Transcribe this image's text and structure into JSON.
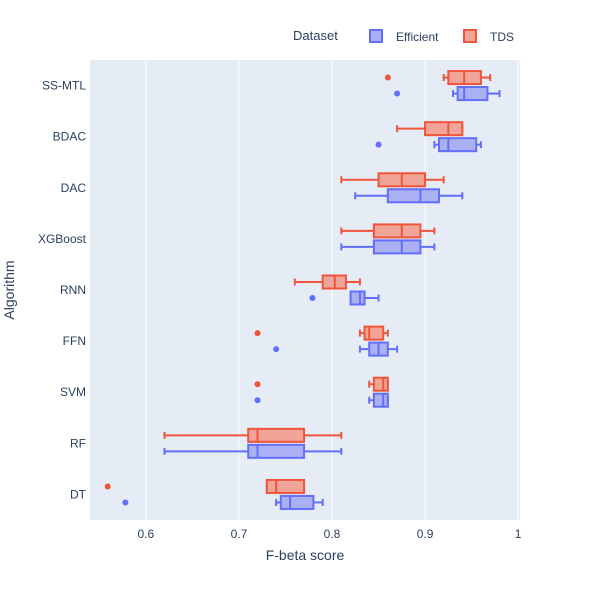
{
  "chart_data": {
    "type": "box",
    "orientation": "horizontal",
    "title": "",
    "xlabel": "F-beta score",
    "ylabel": "Algorithm",
    "xlim": [
      0.54,
      1.002
    ],
    "xticks": [
      0.6,
      0.7,
      0.8,
      0.9,
      1
    ],
    "xtick_labels": [
      "0.6",
      "0.7",
      "0.8",
      "0.9",
      "1"
    ],
    "categories": [
      "DT",
      "RF",
      "SVM",
      "FFN",
      "RNN",
      "XGBoost",
      "DAC",
      "BDAC",
      "SS-MTL"
    ],
    "legend": {
      "title": "Dataset",
      "position": "top-right",
      "items": [
        {
          "name": "Efficient",
          "color": "#636efa"
        },
        {
          "name": "TDS",
          "color": "#ef553b"
        }
      ]
    },
    "grid": true,
    "background_color": "#e5ecf6",
    "series": [
      {
        "name": "Efficient",
        "color": "#636efa",
        "fill": "#aab0f2",
        "boxes": [
          {
            "category": "DT",
            "whisker_low": 0.74,
            "q1": 0.745,
            "median": 0.755,
            "q3": 0.78,
            "whisker_high": 0.79,
            "outliers": [
              0.578
            ]
          },
          {
            "category": "RF",
            "whisker_low": 0.62,
            "q1": 0.71,
            "median": 0.72,
            "q3": 0.77,
            "whisker_high": 0.81,
            "outliers": []
          },
          {
            "category": "SVM",
            "whisker_low": 0.84,
            "q1": 0.845,
            "median": 0.855,
            "q3": 0.86,
            "whisker_high": 0.86,
            "outliers": [
              0.72
            ]
          },
          {
            "category": "FFN",
            "whisker_low": 0.83,
            "q1": 0.84,
            "median": 0.85,
            "q3": 0.86,
            "whisker_high": 0.87,
            "outliers": [
              0.74
            ]
          },
          {
            "category": "RNN",
            "whisker_low": 0.82,
            "q1": 0.82,
            "median": 0.83,
            "q3": 0.835,
            "whisker_high": 0.85,
            "outliers": [
              0.779
            ]
          },
          {
            "category": "XGBoost",
            "whisker_low": 0.81,
            "q1": 0.845,
            "median": 0.875,
            "q3": 0.895,
            "whisker_high": 0.91,
            "outliers": []
          },
          {
            "category": "DAC",
            "whisker_low": 0.825,
            "q1": 0.86,
            "median": 0.895,
            "q3": 0.915,
            "whisker_high": 0.94,
            "outliers": []
          },
          {
            "category": "BDAC",
            "whisker_low": 0.91,
            "q1": 0.915,
            "median": 0.925,
            "q3": 0.955,
            "whisker_high": 0.96,
            "outliers": [
              0.85
            ]
          },
          {
            "category": "SS-MTL",
            "whisker_low": 0.93,
            "q1": 0.935,
            "median": 0.942,
            "q3": 0.967,
            "whisker_high": 0.98,
            "outliers": [
              0.87
            ]
          }
        ]
      },
      {
        "name": "TDS",
        "color": "#ef553b",
        "fill": "#f1a498",
        "boxes": [
          {
            "category": "DT",
            "whisker_low": 0.73,
            "q1": 0.73,
            "median": 0.74,
            "q3": 0.77,
            "whisker_high": 0.77,
            "outliers": [
              0.559
            ]
          },
          {
            "category": "RF",
            "whisker_low": 0.62,
            "q1": 0.71,
            "median": 0.72,
            "q3": 0.77,
            "whisker_high": 0.81,
            "outliers": []
          },
          {
            "category": "SVM",
            "whisker_low": 0.84,
            "q1": 0.845,
            "median": 0.855,
            "q3": 0.86,
            "whisker_high": 0.86,
            "outliers": [
              0.72
            ]
          },
          {
            "category": "FFN",
            "whisker_low": 0.83,
            "q1": 0.835,
            "median": 0.84,
            "q3": 0.855,
            "whisker_high": 0.86,
            "outliers": [
              0.72
            ]
          },
          {
            "category": "RNN",
            "whisker_low": 0.76,
            "q1": 0.79,
            "median": 0.803,
            "q3": 0.815,
            "whisker_high": 0.83,
            "outliers": []
          },
          {
            "category": "XGBoost",
            "whisker_low": 0.81,
            "q1": 0.845,
            "median": 0.875,
            "q3": 0.895,
            "whisker_high": 0.91,
            "outliers": []
          },
          {
            "category": "DAC",
            "whisker_low": 0.81,
            "q1": 0.85,
            "median": 0.875,
            "q3": 0.9,
            "whisker_high": 0.92,
            "outliers": []
          },
          {
            "category": "BDAC",
            "whisker_low": 0.87,
            "q1": 0.9,
            "median": 0.925,
            "q3": 0.94,
            "whisker_high": 0.94,
            "outliers": []
          },
          {
            "category": "SS-MTL",
            "whisker_low": 0.92,
            "q1": 0.925,
            "median": 0.942,
            "q3": 0.96,
            "whisker_high": 0.97,
            "outliers": [
              0.86
            ]
          }
        ]
      }
    ]
  }
}
